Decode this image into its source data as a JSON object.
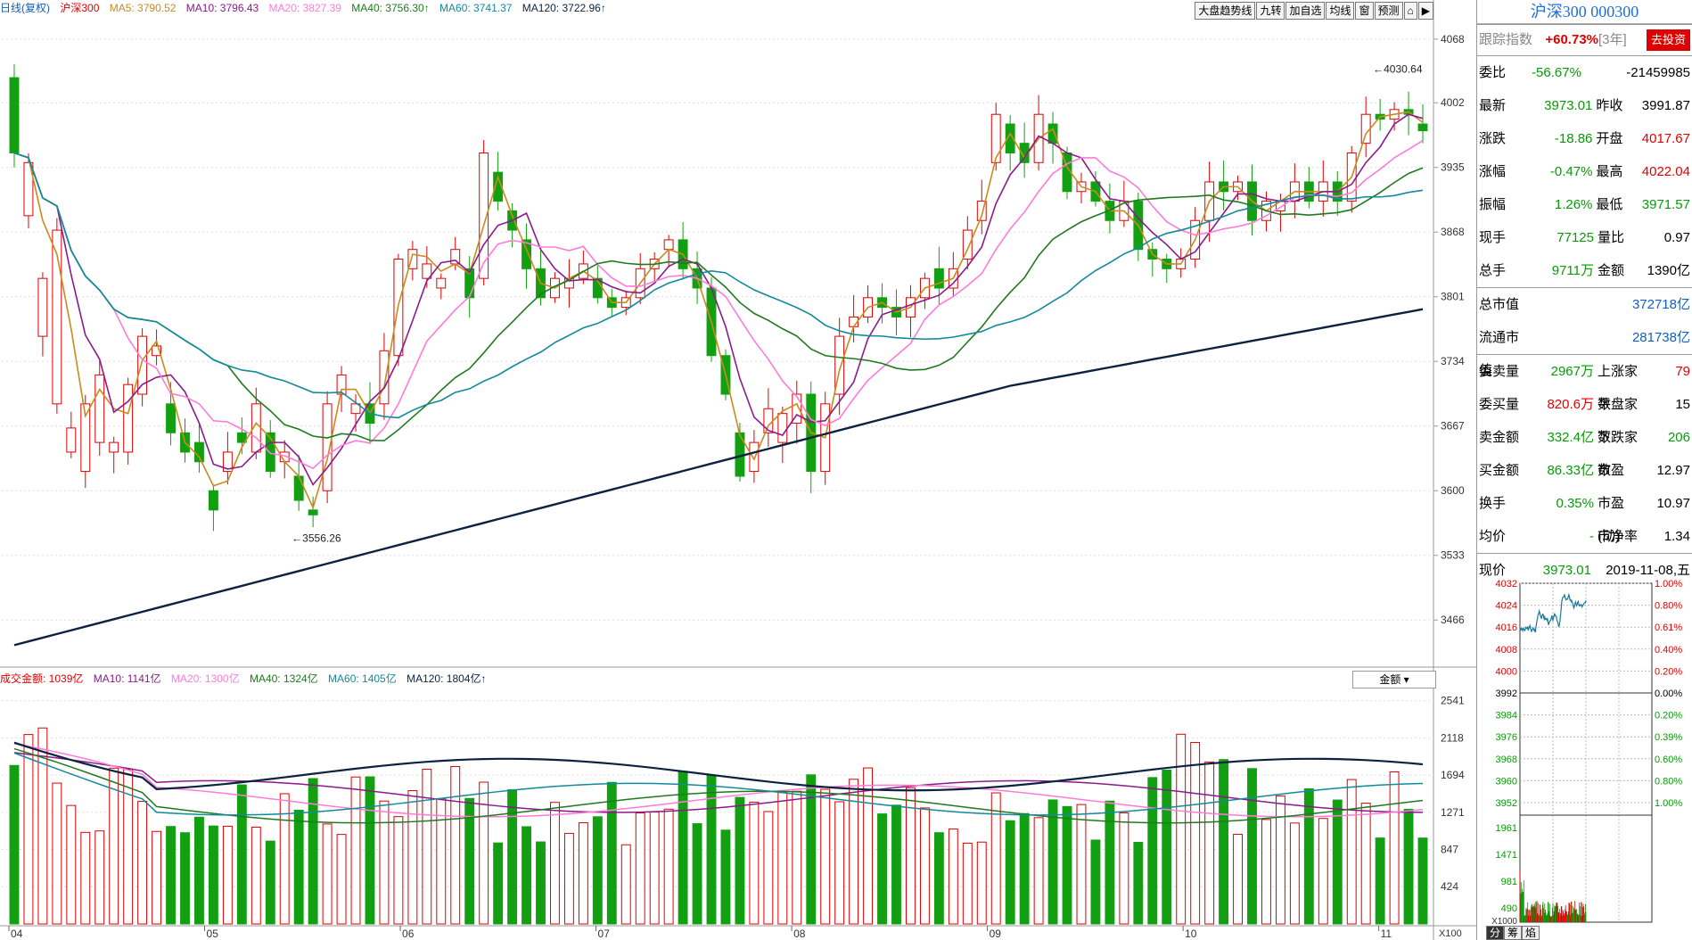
{
  "main_legend": {
    "title": "日线(复权)",
    "index": "沪深300",
    "ma5": "MA5: 3790.52",
    "ma10": "MA10: 3796.43",
    "ma20": "MA20: 3827.39",
    "ma40": "MA40: 3756.30↑",
    "ma60": "MA60: 3741.37",
    "ma120": "MA120: 3722.96↑"
  },
  "toolbar": [
    "大盘趋势线",
    "九转",
    "加自选",
    "均线",
    "窗",
    "预测",
    "⌂",
    "▶"
  ],
  "vol_legend": {
    "amount": "成交金额: 1039亿",
    "ma10": "MA10: 1141亿",
    "ma20": "MA20: 1300亿",
    "ma40": "MA40: 1324亿",
    "ma60": "MA60: 1405亿",
    "ma120": "MA120: 1804亿↑"
  },
  "vol_selector": "金额",
  "price_axis": [
    "4068",
    "4002",
    "3935",
    "3868",
    "3801",
    "3734",
    "3667",
    "3600",
    "3533",
    "3466"
  ],
  "vol_axis": [
    "2541",
    "2118",
    "1694",
    "1271",
    "847",
    "424"
  ],
  "vol_unit": "X100",
  "months": [
    "04",
    "05",
    "06",
    "07",
    "08",
    "09",
    "10",
    "11"
  ],
  "markers": {
    "high": "4030.64",
    "low": "3556.26"
  },
  "colors": {
    "up": "#e00000",
    "down": "#12a012",
    "ma5": "#c98a1e",
    "ma10": "#8b1a8b",
    "ma20": "#ff7bd8",
    "ma40": "#1f7a1f",
    "ma60": "#128a9a",
    "ma120": "#0c2340"
  },
  "side": {
    "title": "沪深300 000300",
    "track_label": "跟踪指数",
    "track_value": "+60.73%",
    "track_years": "[3年]",
    "track_button": "去投资",
    "rows1": [
      {
        "k": "委比",
        "v": "-56.67%",
        "k2": "",
        "v2": "-21459985"
      },
      {
        "k": "最新",
        "v": "3973.01",
        "k2": "昨收",
        "v2": "3991.87"
      },
      {
        "k": "涨跌",
        "v": "-18.86",
        "k2": "开盘",
        "v2": "4017.67"
      },
      {
        "k": "涨幅",
        "v": "-0.47%",
        "k2": "最高",
        "v2": "4022.04"
      },
      {
        "k": "振幅",
        "v": "1.26%",
        "k2": "最低",
        "v2": "3971.57"
      },
      {
        "k": "现手",
        "v": "77125",
        "k2": "量比",
        "v2": "0.97"
      },
      {
        "k": "总手",
        "v": "9711万",
        "k2": "金额",
        "v2": "1390亿"
      }
    ],
    "rows2": [
      {
        "k": "总市值",
        "v2": "372718亿"
      },
      {
        "k": "流通市值",
        "v2": "281738亿"
      }
    ],
    "rows3": [
      {
        "k": "委卖量",
        "v": "2967万",
        "k2": "上涨家数",
        "v2": "79"
      },
      {
        "k": "委买量",
        "v": "820.6万",
        "k2": "平盘家数",
        "v2": "15"
      },
      {
        "k": "卖金额",
        "v": "332.4亿",
        "k2": "下跌家数",
        "v2": "206"
      },
      {
        "k": "买金额",
        "v": "86.33亿",
        "k2": "市盈",
        "v2": "12.97"
      },
      {
        "k": "换手",
        "v": "0.35%",
        "k2": "市盈(动)",
        "v2": "10.97"
      },
      {
        "k": "均价",
        "v": "-",
        "k2": "市净率",
        "v2": "1.34"
      }
    ],
    "now_label": "现价",
    "now_value": "3973.01",
    "date": "2019-11-08,五"
  },
  "mini_chart": {
    "price_ticks": [
      "4032",
      "4024",
      "4016",
      "4008",
      "4000",
      "3992",
      "3984",
      "3976",
      "3968",
      "3960",
      "3952"
    ],
    "pct_ticks": [
      "1.00%",
      "0.80%",
      "0.61%",
      "0.40%",
      "0.20%",
      "0.00%",
      "0.20%",
      "0.39%",
      "0.60%",
      "0.80%",
      "1.00%"
    ],
    "vol_ticks": [
      "1961",
      "1471",
      "981",
      "490"
    ],
    "vol_unit": "X1000",
    "tabs": [
      "分",
      "筹",
      "焰"
    ]
  },
  "chart_data": {
    "type": "candlestick",
    "title": "沪深300 日线(复权)",
    "ylim": [
      3420,
      4090
    ],
    "months": [
      "04",
      "05",
      "06",
      "07",
      "08",
      "09",
      "10",
      "11"
    ],
    "series": [
      {
        "name": "沪深300",
        "candles": [
          [
            4028,
            3950
          ],
          [
            3885,
            3940
          ],
          [
            3760,
            3820
          ],
          [
            3690,
            3870
          ],
          [
            3640,
            3665
          ],
          [
            3620,
            3690
          ],
          [
            3650,
            3720
          ],
          [
            3640,
            3650
          ],
          [
            3640,
            3710
          ],
          [
            3700,
            3760
          ],
          [
            3740,
            3750
          ],
          [
            3690,
            3660
          ],
          [
            3660,
            3640
          ],
          [
            3650,
            3630
          ],
          [
            3600,
            3580
          ],
          [
            3620,
            3640
          ],
          [
            3660,
            3650
          ],
          [
            3640,
            3690
          ],
          [
            3660,
            3620
          ],
          [
            3630,
            3640
          ],
          [
            3615,
            3590
          ],
          [
            3580,
            3575
          ],
          [
            3600,
            3690
          ],
          [
            3700,
            3720
          ],
          [
            3680,
            3690
          ],
          [
            3690,
            3670
          ],
          [
            3690,
            3745
          ],
          [
            3740,
            3840
          ],
          [
            3830,
            3850
          ],
          [
            3820,
            3835
          ],
          [
            3810,
            3820
          ],
          [
            3835,
            3850
          ],
          [
            3830,
            3800
          ],
          [
            3820,
            3950
          ],
          [
            3930,
            3900
          ],
          [
            3890,
            3870
          ],
          [
            3860,
            3830
          ],
          [
            3830,
            3800
          ],
          [
            3800,
            3820
          ],
          [
            3810,
            3820
          ],
          [
            3820,
            3835
          ],
          [
            3820,
            3800
          ],
          [
            3800,
            3790
          ],
          [
            3790,
            3800
          ],
          [
            3800,
            3830
          ],
          [
            3830,
            3840
          ],
          [
            3850,
            3860
          ],
          [
            3860,
            3830
          ],
          [
            3830,
            3810
          ],
          [
            3810,
            3740
          ],
          [
            3740,
            3700
          ],
          [
            3660,
            3615
          ],
          [
            3620,
            3650
          ],
          [
            3660,
            3685
          ],
          [
            3650,
            3680
          ],
          [
            3670,
            3700
          ],
          [
            3700,
            3620
          ],
          [
            3620,
            3690
          ],
          [
            3700,
            3760
          ],
          [
            3770,
            3780
          ],
          [
            3780,
            3800
          ],
          [
            3800,
            3790
          ],
          [
            3790,
            3780
          ],
          [
            3780,
            3800
          ],
          [
            3800,
            3820
          ],
          [
            3830,
            3810
          ],
          [
            3810,
            3830
          ],
          [
            3840,
            3870
          ],
          [
            3880,
            3900
          ],
          [
            3940,
            3990
          ],
          [
            3980,
            3950
          ],
          [
            3960,
            3940
          ],
          [
            3940,
            3990
          ],
          [
            3980,
            3960
          ],
          [
            3950,
            3910
          ],
          [
            3910,
            3920
          ],
          [
            3920,
            3900
          ],
          [
            3900,
            3880
          ],
          [
            3880,
            3900
          ],
          [
            3900,
            3850
          ],
          [
            3850,
            3840
          ],
          [
            3840,
            3830
          ],
          [
            3830,
            3840
          ],
          [
            3840,
            3880
          ],
          [
            3880,
            3920
          ],
          [
            3920,
            3910
          ],
          [
            3910,
            3920
          ],
          [
            3920,
            3880
          ],
          [
            3880,
            3900
          ],
          [
            3890,
            3900
          ],
          [
            3900,
            3920
          ],
          [
            3920,
            3900
          ],
          [
            3900,
            3920
          ],
          [
            3920,
            3900
          ],
          [
            3900,
            3950
          ],
          [
            3960,
            3990
          ],
          [
            3990,
            3985
          ],
          [
            3985,
            3995
          ],
          [
            3995,
            3990
          ],
          [
            3980,
            3973
          ]
        ]
      }
    ]
  }
}
